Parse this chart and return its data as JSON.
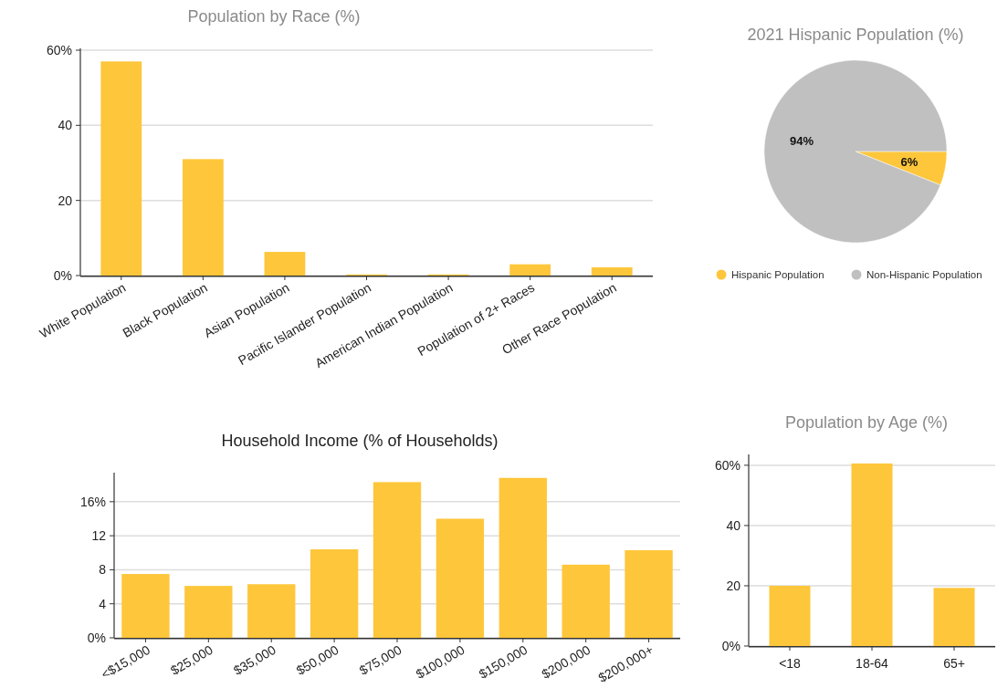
{
  "chart_data": [
    {
      "type": "bar",
      "title": "Population by Race (%)",
      "categories": [
        "White Population",
        "Black Population",
        "Asian Population",
        "Pacific Islander Population",
        "American Indian Population",
        "Population of 2+ Races",
        "Other Race Population"
      ],
      "values": [
        57,
        31,
        6.3,
        0.3,
        0.3,
        3.0,
        2.2
      ],
      "color": "#fec63a",
      "ylim": [
        0,
        60
      ],
      "yticks": [
        {
          "value": 0,
          "label": "0%"
        },
        20,
        40,
        {
          "value": 60,
          "label": "60%"
        }
      ],
      "grid": "y"
    },
    {
      "type": "pie",
      "title": "2021 Hispanic Population (%)",
      "categories": [
        "Hispanic Population",
        "Non-Hispanic Population"
      ],
      "values": [
        6,
        94
      ],
      "value_labels": [
        "6%",
        "94%"
      ],
      "colors": [
        "#fec63a",
        "#c0c0c0"
      ],
      "legend": "bottom"
    },
    {
      "type": "bar",
      "title": "Household Income (% of Households)",
      "categories": [
        "<$15,000",
        "$25,000",
        "$35,000",
        "$50,000",
        "$75,000",
        "$100,000",
        "$150,000",
        "$200,000",
        "$200,000+"
      ],
      "values": [
        7.5,
        6.1,
        6.3,
        10.4,
        18.3,
        14.0,
        18.8,
        8.6,
        10.3
      ],
      "color": "#fec63a",
      "ylim": [
        0,
        19.2
      ],
      "yticks": [
        {
          "value": 0,
          "label": "0%"
        },
        4,
        8,
        12,
        {
          "value": 16,
          "label": "16%"
        }
      ],
      "grid": "y"
    },
    {
      "type": "bar",
      "title": "Population by Age (%)",
      "categories": [
        "<18",
        "18-64",
        "65+"
      ],
      "values": [
        20,
        60.6,
        19.3
      ],
      "color": "#fec63a",
      "ylim": [
        0,
        63
      ],
      "yticks": [
        {
          "value": 0,
          "label": "0%"
        },
        20,
        40,
        {
          "value": 60,
          "label": "60%"
        }
      ],
      "grid": "y"
    }
  ]
}
